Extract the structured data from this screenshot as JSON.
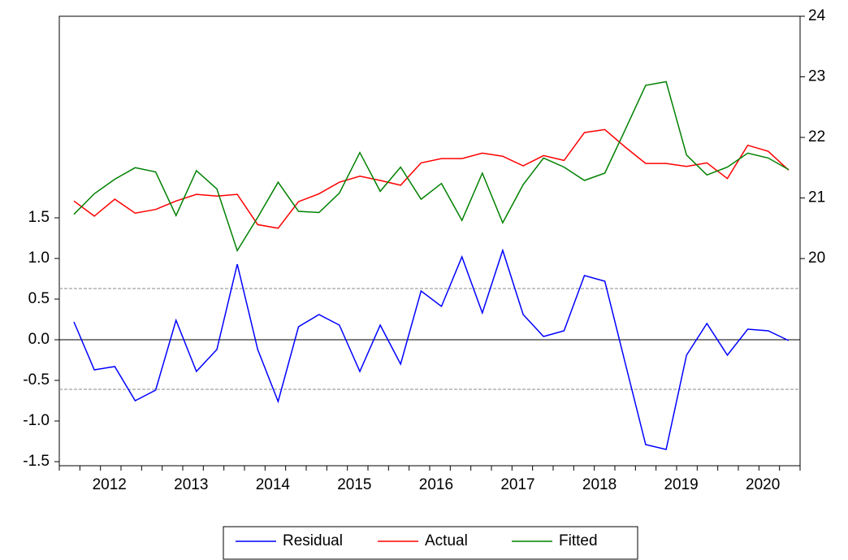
{
  "chart_data": {
    "type": "line",
    "categories": [
      "2012",
      null,
      null,
      null,
      "2013",
      null,
      null,
      null,
      "2014",
      null,
      null,
      null,
      "2015",
      null,
      null,
      null,
      "2016",
      null,
      null,
      null,
      "2017",
      null,
      null,
      null,
      "2018",
      null,
      null,
      null,
      "2019",
      null,
      null,
      null,
      "2020",
      null,
      null,
      null
    ],
    "series": [
      {
        "name": "Residual",
        "color": "#0000ff",
        "axis": "y",
        "values": [
          0.22,
          -0.37,
          -0.33,
          -0.75,
          -0.62,
          0.24,
          -0.39,
          -0.12,
          0.93,
          -0.12,
          -0.76,
          0.16,
          0.31,
          0.18,
          -0.39,
          0.18,
          -0.3,
          0.6,
          0.41,
          1.02,
          0.33,
          1.1,
          0.31,
          0.04,
          0.11,
          0.79,
          0.72,
          -0.29,
          -1.29,
          -1.35,
          -0.19,
          0.2,
          -0.19,
          0.13,
          0.11,
          -0.01
        ]
      },
      {
        "name": "Actual",
        "color": "#ff0000",
        "axis": "y2",
        "values": [
          20.95,
          20.7,
          20.98,
          20.75,
          20.81,
          20.95,
          21.06,
          21.03,
          21.06,
          20.56,
          20.5,
          20.94,
          21.07,
          21.26,
          21.36,
          21.29,
          21.21,
          21.58,
          21.65,
          21.65,
          21.74,
          21.69,
          21.53,
          21.7,
          21.62,
          22.08,
          22.13,
          21.84,
          21.57,
          21.57,
          21.52,
          21.58,
          21.32,
          21.87,
          21.77,
          21.46
        ]
      },
      {
        "name": "Fitted",
        "color": "#008000",
        "axis": "y2",
        "values": [
          20.73,
          21.07,
          21.31,
          21.5,
          21.43,
          20.71,
          21.45,
          21.15,
          20.13,
          20.68,
          21.26,
          20.78,
          20.76,
          21.08,
          21.75,
          21.11,
          21.51,
          20.98,
          21.24,
          20.63,
          21.41,
          20.59,
          21.22,
          21.66,
          21.51,
          21.29,
          21.41,
          22.13,
          22.86,
          22.92,
          21.71,
          21.38,
          21.51,
          21.74,
          21.66,
          21.47
        ]
      }
    ],
    "ylim": [
      -1.55,
      3.98
    ],
    "yticks": [
      -1.5,
      -1.0,
      -0.5,
      0.0,
      0.5,
      1.0,
      1.5
    ],
    "y2lim": [
      16.58,
      24
    ],
    "y2ticks": [
      20,
      21,
      22,
      23,
      24
    ],
    "residual_band": [
      -0.61,
      0.63
    ],
    "grid": false,
    "legend": "bottom"
  }
}
